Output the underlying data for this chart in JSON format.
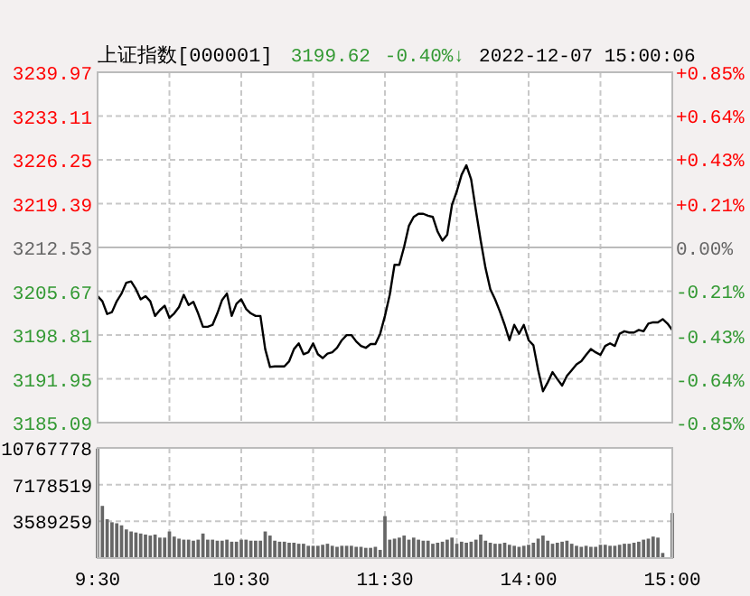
{
  "chart_data": [
    {
      "type": "line",
      "title": "上证指数[000001]",
      "annotations": [
        "3199.62",
        "-0.40%↓",
        "2022-12-07 15:00:06"
      ],
      "categories": [
        null,
        null,
        null,
        null,
        null,
        null,
        null,
        null,
        null,
        null,
        null,
        null,
        null,
        null,
        null,
        null,
        null,
        null,
        null,
        null,
        null,
        null,
        null,
        null,
        null,
        null,
        null,
        null,
        null,
        null,
        null,
        null,
        null,
        null,
        null,
        null,
        null,
        null,
        null,
        null,
        null,
        null,
        null,
        null,
        null,
        null,
        null,
        null,
        null,
        null,
        null,
        null,
        null,
        null,
        null,
        null,
        null,
        null,
        null,
        null,
        null,
        null,
        null,
        null,
        null,
        null,
        null,
        null,
        null,
        null,
        null,
        null,
        null,
        null,
        null,
        null,
        null,
        null,
        null,
        null,
        null,
        null,
        null,
        null,
        null,
        null,
        null,
        null,
        null,
        null,
        null,
        null,
        null,
        null,
        null,
        null,
        null,
        null,
        null,
        null,
        null,
        null,
        null,
        null,
        null,
        null,
        null,
        null,
        null,
        null,
        null,
        null,
        null,
        null,
        null,
        null,
        null,
        null,
        null,
        null,
        null
      ],
      "series": [
        {
          "color": "#000000",
          "values": [
            3204.9,
            3204.1,
            3202.1,
            3202.4,
            3204.1,
            3205.3,
            3207.0,
            3207.2,
            3206.0,
            3204.4,
            3204.9,
            3204.1,
            3201.8,
            3202.7,
            3203.4,
            3201.5,
            3202.2,
            3203.2,
            3205.1,
            3203.5,
            3204.0,
            3202.2,
            3200.1,
            3200.1,
            3200.4,
            3202.2,
            3204.3,
            3205.3,
            3201.8,
            3203.7,
            3204.4,
            3202.9,
            3202.2,
            3201.8,
            3201.8,
            3196.6,
            3193.8,
            3193.9,
            3193.9,
            3193.9,
            3194.7,
            3196.6,
            3197.5,
            3195.8,
            3196.1,
            3197.5,
            3195.8,
            3195.2,
            3195.9,
            3196.1,
            3196.8,
            3198.0,
            3198.8,
            3198.8,
            3197.8,
            3197.1,
            3196.8,
            3197.4,
            3197.4,
            3199.0,
            3201.8,
            3205.1,
            3209.8,
            3209.8,
            3212.6,
            3215.9,
            3217.3,
            3217.8,
            3217.8,
            3217.5,
            3217.3,
            3215.0,
            3213.6,
            3214.5,
            3219.2,
            3221.3,
            3223.9,
            3225.4,
            3223.2,
            3218.3,
            3213.6,
            3209.3,
            3206.0,
            3204.4,
            3202.5,
            3200.4,
            3198.0,
            3200.4,
            3199.0,
            3200.4,
            3198.0,
            3197.2,
            3193.3,
            3190.0,
            3191.4,
            3193.0,
            3191.9,
            3190.9,
            3192.4,
            3193.3,
            3194.2,
            3194.7,
            3195.7,
            3196.6,
            3196.1,
            3195.7,
            3197.1,
            3197.5,
            3197.1,
            3199.0,
            3199.4,
            3199.2,
            3199.2,
            3199.6,
            3199.4,
            3200.6,
            3200.8,
            3200.8,
            3201.3,
            3200.6,
            3199.6
          ]
        }
      ],
      "ylim": [
        3185.09,
        3239.97
      ],
      "yticks": [
        3185.09,
        3191.95,
        3198.81,
        3205.67,
        3212.53,
        3219.39,
        3226.25,
        3233.11,
        3239.97
      ],
      "y2lim": [
        -0.85,
        0.85
      ],
      "y2ticks": [
        {
          "value": -0.85,
          "label": "-0.85%"
        },
        {
          "value": -0.64,
          "label": "-0.64%"
        },
        {
          "value": -0.43,
          "label": "-0.43%"
        },
        {
          "value": -0.21,
          "label": "-0.21%"
        },
        {
          "value": 0,
          "label": "0.00%"
        },
        {
          "value": 0.21,
          "label": "+0.21%"
        },
        {
          "value": 0.43,
          "label": "+0.43%"
        },
        {
          "value": 0.64,
          "label": "+0.64%"
        },
        {
          "value": 0.85,
          "label": "+0.85%"
        }
      ],
      "ref_lines": [
        {
          "axis": "y",
          "value": 3212.53,
          "color": "#bbbbbb"
        }
      ],
      "grid": true
    },
    {
      "type": "bar",
      "color": "#666666",
      "categories": [
        "9:30",
        null,
        null,
        null,
        null,
        null,
        null,
        null,
        null,
        null,
        null,
        null,
        null,
        null,
        null,
        null,
        null,
        null,
        null,
        null,
        null,
        null,
        null,
        null,
        null,
        null,
        null,
        null,
        null,
        null,
        "10:30",
        null,
        null,
        null,
        null,
        null,
        null,
        null,
        null,
        null,
        null,
        null,
        null,
        null,
        null,
        null,
        null,
        null,
        null,
        null,
        null,
        null,
        null,
        null,
        null,
        null,
        null,
        null,
        null,
        null,
        "11:30",
        null,
        null,
        null,
        null,
        null,
        null,
        null,
        null,
        null,
        null,
        null,
        null,
        null,
        null,
        null,
        null,
        null,
        null,
        null,
        null,
        null,
        null,
        null,
        null,
        null,
        null,
        null,
        null,
        null,
        "14:00",
        null,
        null,
        null,
        null,
        null,
        null,
        null,
        null,
        null,
        null,
        null,
        null,
        null,
        null,
        null,
        null,
        null,
        null,
        null,
        null,
        null,
        null,
        null,
        null,
        null,
        null,
        null,
        null,
        null,
        "15:00"
      ],
      "values": [
        10700000,
        5100000,
        3800000,
        3500000,
        3400000,
        3200000,
        2800000,
        2600000,
        2500000,
        2400000,
        2300000,
        2200000,
        2300000,
        2000000,
        2000000,
        2600000,
        2100000,
        1900000,
        1800000,
        1800000,
        1700000,
        1800000,
        2400000,
        1800000,
        1800000,
        1700000,
        1700000,
        1800000,
        1600000,
        1600000,
        1800000,
        1800000,
        1700000,
        1700000,
        1700000,
        2600000,
        2200000,
        1700000,
        1600000,
        1600000,
        1500000,
        1500000,
        1400000,
        1400000,
        1200000,
        1200000,
        1200000,
        1300000,
        1400000,
        1200000,
        1100000,
        1200000,
        1200000,
        1200000,
        1100000,
        1100000,
        1000000,
        1000000,
        1100000,
        800000,
        4100000,
        1800000,
        1900000,
        2000000,
        2200000,
        1800000,
        2000000,
        1800000,
        1700000,
        1700000,
        1400000,
        1500000,
        1600000,
        1800000,
        2000000,
        1400000,
        1600000,
        1500000,
        1600000,
        1800000,
        2300000,
        1700000,
        1500000,
        1400000,
        1400000,
        1500000,
        1300000,
        1200000,
        1100000,
        1200000,
        1300000,
        1500000,
        1900000,
        2200000,
        1700000,
        1400000,
        1500000,
        1600000,
        1700000,
        1400000,
        1200000,
        1100000,
        1200000,
        1100000,
        1100000,
        1300000,
        1300000,
        1200000,
        1200000,
        1300000,
        1400000,
        1400000,
        1500000,
        1600000,
        1800000,
        1900000,
        2100000,
        2000000,
        500000,
        0,
        4400000
      ],
      "ylim": [
        0,
        10767778
      ],
      "yticks": [
        3589259,
        7178519,
        10767778
      ],
      "grid": true
    }
  ]
}
